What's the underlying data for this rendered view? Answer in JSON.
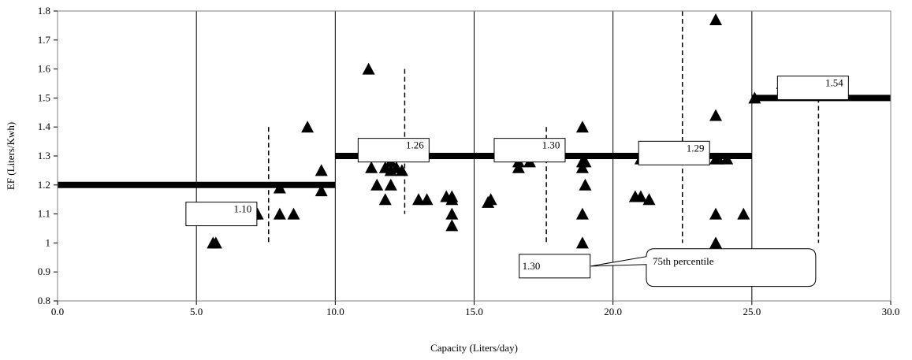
{
  "chart_data": {
    "type": "scatter",
    "title": "",
    "xlabel": "Capacity (Liters/day)",
    "ylabel": "EF (Liters/Kwh)",
    "xlim": [
      0,
      30
    ],
    "ylim": [
      0.8,
      1.8
    ],
    "x_ticks": [
      "0.0",
      "5.0",
      "10.0",
      "15.0",
      "20.0",
      "25.0",
      "30.0"
    ],
    "y_ticks": [
      "0.8",
      "0.9",
      "1",
      "1.1",
      "1.2",
      "1.3",
      "1.4",
      "1.5",
      "1.6",
      "1.7",
      "1.8"
    ],
    "grid": "vertical",
    "points": [
      [
        5.6,
        1.0
      ],
      [
        5.7,
        1.0
      ],
      [
        7.0,
        1.1
      ],
      [
        7.1,
        1.1
      ],
      [
        7.2,
        1.1
      ],
      [
        8.0,
        1.19
      ],
      [
        8.0,
        1.1
      ],
      [
        8.5,
        1.1
      ],
      [
        9.0,
        1.4
      ],
      [
        9.5,
        1.25
      ],
      [
        9.5,
        1.18
      ],
      [
        11.2,
        1.6
      ],
      [
        11.3,
        1.26
      ],
      [
        11.5,
        1.2
      ],
      [
        11.8,
        1.26
      ],
      [
        11.8,
        1.15
      ],
      [
        12.0,
        1.28
      ],
      [
        12.0,
        1.25
      ],
      [
        12.0,
        1.2
      ],
      [
        12.2,
        1.26
      ],
      [
        12.4,
        1.25
      ],
      [
        13.0,
        1.15
      ],
      [
        13.3,
        1.15
      ],
      [
        14.0,
        1.16
      ],
      [
        14.2,
        1.16
      ],
      [
        14.2,
        1.15
      ],
      [
        14.2,
        1.1
      ],
      [
        14.2,
        1.06
      ],
      [
        15.5,
        1.14
      ],
      [
        15.6,
        1.15
      ],
      [
        16.6,
        1.26
      ],
      [
        16.6,
        1.28
      ],
      [
        17.0,
        1.28
      ],
      [
        18.0,
        1.3
      ],
      [
        18.9,
        1.4
      ],
      [
        18.9,
        1.28
      ],
      [
        18.9,
        1.26
      ],
      [
        18.9,
        1.1
      ],
      [
        18.9,
        1.0
      ],
      [
        19.0,
        1.2
      ],
      [
        19.0,
        1.28
      ],
      [
        20.8,
        1.16
      ],
      [
        21.0,
        1.16
      ],
      [
        21.0,
        1.29
      ],
      [
        21.3,
        1.15
      ],
      [
        23.7,
        1.77
      ],
      [
        23.7,
        1.44
      ],
      [
        23.7,
        1.29
      ],
      [
        23.8,
        1.29
      ],
      [
        23.7,
        1.1
      ],
      [
        23.7,
        1.0
      ],
      [
        24.1,
        1.29
      ],
      [
        24.7,
        1.1
      ],
      [
        25.1,
        1.5
      ],
      [
        26.1,
        1.55
      ]
    ],
    "steps": [
      {
        "x0": 0.0,
        "x1": 10.0,
        "y": 1.2
      },
      {
        "x0": 10.0,
        "x1": 25.0,
        "y": 1.3
      },
      {
        "x0": 25.0,
        "x1": 30.0,
        "y": 1.5
      }
    ],
    "dividers": [
      {
        "x": 7.6,
        "y0": 1.0,
        "y1": 1.4
      },
      {
        "x": 12.5,
        "y0": 1.1,
        "y1": 1.6
      },
      {
        "x": 17.6,
        "y0": 1.0,
        "y1": 1.4
      },
      {
        "x": 22.5,
        "y0": 1.0,
        "y1": 1.8
      },
      {
        "x": 27.4,
        "y0": 1.0,
        "y1": 1.5
      }
    ],
    "annotations": [
      {
        "text": "1.10",
        "x": 5.9,
        "y": 1.1
      },
      {
        "text": "1.26",
        "x": 12.1,
        "y": 1.32
      },
      {
        "text": "1.30",
        "x": 17.0,
        "y": 1.32
      },
      {
        "text": "1.29",
        "x": 22.2,
        "y": 1.31
      },
      {
        "text": "1.54",
        "x": 27.2,
        "y": 1.535
      },
      {
        "text": "1.30",
        "x": 17.9,
        "y": 0.92
      }
    ],
    "callout": {
      "text": "75th percentile"
    }
  }
}
